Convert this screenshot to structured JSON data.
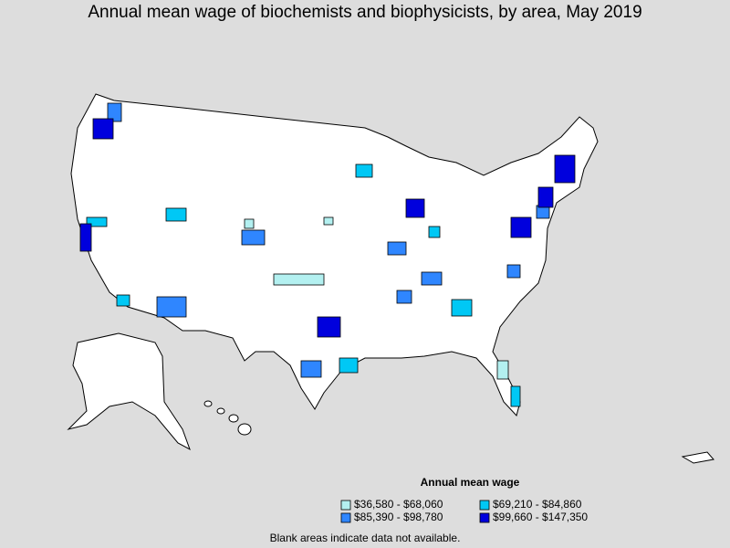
{
  "title": "Annual mean wage of biochemists and biophysicists, by area, May 2019",
  "legend": {
    "title": "Annual mean wage",
    "items": [
      {
        "label": "$36,580 - $68,060",
        "color": "#b3f0f0"
      },
      {
        "label": "$69,210 - $84,860",
        "color": "#00c8f5"
      },
      {
        "label": "$85,390 - $98,780",
        "color": "#2f86ff"
      },
      {
        "label": "$99,660 - $147,350",
        "color": "#0000dd"
      }
    ]
  },
  "footnote": "Blank areas indicate data not available."
}
